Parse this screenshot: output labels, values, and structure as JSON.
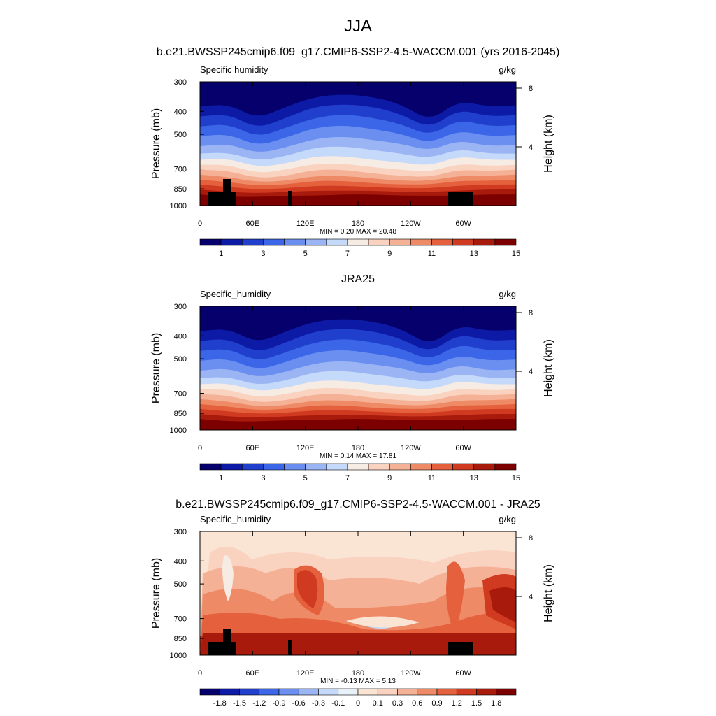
{
  "figure": {
    "season_title": "JJA",
    "run_title": "b.e21.BWSSP245cmip6.f09_g17.CMIP6-SSP2-4.5-WACCM.001 (yrs 2016-2045)"
  },
  "chart_data": [
    {
      "type": "heatmap",
      "title": "",
      "left_string": "Specific humidity",
      "right_string": "g/kg",
      "ylabel": "Pressure (mb)",
      "y2label": "Height (km)",
      "x_ticks": [
        "0",
        "60E",
        "120E",
        "180",
        "120W",
        "60W"
      ],
      "x_tick_lon": [
        0,
        60,
        120,
        180,
        240,
        300
      ],
      "xlim": [
        0,
        360
      ],
      "y_ticks": [
        "300",
        "400",
        "500",
        "700",
        "850",
        "1000"
      ],
      "y_tick_p": [
        300,
        400,
        500,
        700,
        850,
        1000
      ],
      "ylim": [
        1000,
        300
      ],
      "y_scale": "log",
      "y2_ticks": [
        "8",
        "4"
      ],
      "y2_tick_km": [
        8,
        4
      ],
      "stats": "MIN =   0.20  MAX =  20.48",
      "min": 0.2,
      "max": 20.48,
      "topography_masked": true,
      "colorbar_labels": [
        "1",
        "3",
        "5",
        "7",
        "9",
        "11",
        "13",
        "15"
      ],
      "colorbar_colors": [
        "#05006b",
        "#0d1aa6",
        "#1f3fcc",
        "#3b66e8",
        "#6b8ff0",
        "#9bb5f4",
        "#c5d9fa",
        "#f6ece4",
        "#fad2c0",
        "#f5b196",
        "#ee8a66",
        "#e5603d",
        "#cf3a20",
        "#a81a0c",
        "#7d0000"
      ]
    },
    {
      "type": "heatmap",
      "title": "JRA25",
      "left_string": "Specific_humidity",
      "right_string": "g/kg",
      "ylabel": "Pressure (mb)",
      "y2label": "Height (km)",
      "x_ticks": [
        "0",
        "60E",
        "120E",
        "180",
        "120W",
        "60W"
      ],
      "x_tick_lon": [
        0,
        60,
        120,
        180,
        240,
        300
      ],
      "xlim": [
        0,
        360
      ],
      "y_ticks": [
        "300",
        "400",
        "500",
        "700",
        "850",
        "1000"
      ],
      "y_tick_p": [
        300,
        400,
        500,
        700,
        850,
        1000
      ],
      "ylim": [
        1000,
        300
      ],
      "y_scale": "log",
      "y2_ticks": [
        "8",
        "4"
      ],
      "y2_tick_km": [
        8,
        4
      ],
      "stats": "MIN =   0.14  MAX =  17.81",
      "min": 0.14,
      "max": 17.81,
      "topography_masked": false,
      "colorbar_labels": [
        "1",
        "3",
        "5",
        "7",
        "9",
        "11",
        "13",
        "15"
      ],
      "colorbar_colors": [
        "#05006b",
        "#0d1aa6",
        "#1f3fcc",
        "#3b66e8",
        "#6b8ff0",
        "#9bb5f4",
        "#c5d9fa",
        "#f6ece4",
        "#fad2c0",
        "#f5b196",
        "#ee8a66",
        "#e5603d",
        "#cf3a20",
        "#a81a0c",
        "#7d0000"
      ]
    },
    {
      "type": "heatmap",
      "title": "b.e21.BWSSP245cmip6.f09_g17.CMIP6-SSP2-4.5-WACCM.001 - JRA25",
      "left_string": "Specific_humidity",
      "right_string": "g/kg",
      "ylabel": "Pressure (mb)",
      "y2label": "Height (km)",
      "x_ticks": [
        "0",
        "60E",
        "120E",
        "180",
        "120W",
        "60W"
      ],
      "x_tick_lon": [
        0,
        60,
        120,
        180,
        240,
        300
      ],
      "xlim": [
        0,
        360
      ],
      "y_ticks": [
        "300",
        "400",
        "500",
        "700",
        "850",
        "1000"
      ],
      "y_tick_p": [
        300,
        400,
        500,
        700,
        850,
        1000
      ],
      "ylim": [
        1000,
        300
      ],
      "y_scale": "log",
      "y2_ticks": [
        "8",
        "4"
      ],
      "y2_tick_km": [
        8,
        4
      ],
      "stats": "MIN =  -0.13  MAX =   5.13",
      "min": -0.13,
      "max": 5.13,
      "topography_masked": true,
      "colorbar_labels": [
        "-1.8",
        "-1.5",
        "-1.2",
        "-0.9",
        "-0.6",
        "-0.3",
        "-0.1",
        "0",
        "0.1",
        "0.3",
        "0.6",
        "0.9",
        "1.2",
        "1.5",
        "1.8"
      ],
      "colorbar_colors": [
        "#05006b",
        "#0d1aa6",
        "#1f3fcc",
        "#3b66e8",
        "#6b8ff0",
        "#9bb5f4",
        "#c5d9fa",
        "#e8f0fa",
        "#fae5d4",
        "#fad2c0",
        "#f5b196",
        "#ee8a66",
        "#e5603d",
        "#cf3a20",
        "#a81a0c",
        "#7d0000"
      ]
    }
  ]
}
